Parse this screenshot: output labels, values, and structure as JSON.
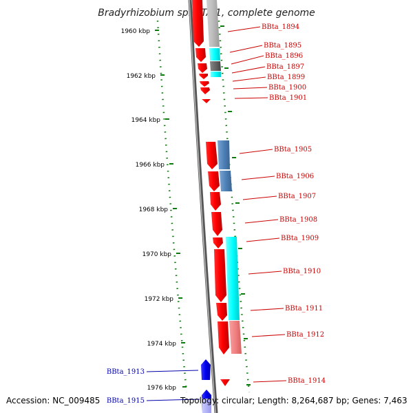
{
  "title": "Bradyrhizobium sp. BTAi1, complete genome",
  "footer": {
    "accession": "Accession: NC_009485",
    "topology": "Topology: circular; Length: 8,264,687 bp; Genes: 7,463"
  },
  "ticks": [
    "1960 kbp",
    "1962 kbp",
    "1964 kbp",
    "1966 kbp",
    "1968 kbp",
    "1970 kbp",
    "1972 kbp",
    "1974 kbp",
    "1976 kbp"
  ],
  "genes": [
    {
      "id": "BBta_1894",
      "color": "#cc0000"
    },
    {
      "id": "BBta_1895",
      "color": "#cc0000"
    },
    {
      "id": "BBta_1896",
      "color": "#cc0000"
    },
    {
      "id": "BBta_1897",
      "color": "#cc0000"
    },
    {
      "id": "BBta_1899",
      "color": "#cc0000"
    },
    {
      "id": "BBta_1900",
      "color": "#cc0000"
    },
    {
      "id": "BBta_1901",
      "color": "#cc0000"
    },
    {
      "id": "BBta_1905",
      "color": "#cc0000"
    },
    {
      "id": "BBta_1906",
      "color": "#cc0000"
    },
    {
      "id": "BBta_1907",
      "color": "#cc0000"
    },
    {
      "id": "BBta_1908",
      "color": "#cc0000"
    },
    {
      "id": "BBta_1909",
      "color": "#cc0000"
    },
    {
      "id": "BBta_1910",
      "color": "#cc0000"
    },
    {
      "id": "BBta_1911",
      "color": "#cc0000"
    },
    {
      "id": "BBta_1912",
      "color": "#cc0000"
    },
    {
      "id": "BBta_1914",
      "color": "#cc0000"
    },
    {
      "id": "BBta_1913",
      "color": "#0000aa"
    },
    {
      "id": "BBta_1915",
      "color": "#0000aa"
    }
  ]
}
